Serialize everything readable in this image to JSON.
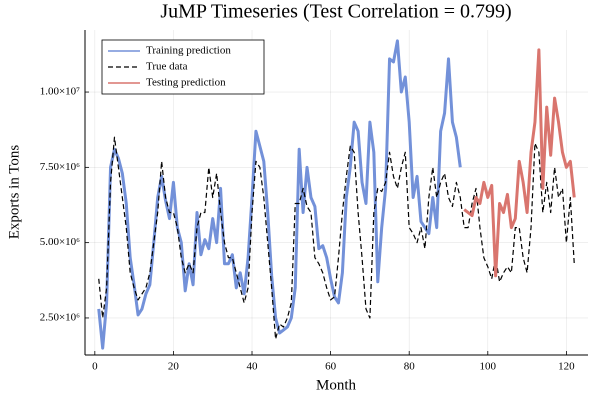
{
  "chart_data": {
    "type": "line",
    "title": "JuMP Timeseries (Test Correlation = 0.799)",
    "xlabel": "Month",
    "ylabel": "Exports in Tons",
    "xlim": [
      -2.5,
      125.5
    ],
    "xticks": [
      0,
      20,
      40,
      60,
      80,
      100,
      120
    ],
    "ylim": [
      1270000,
      12060000
    ],
    "yticks": [
      {
        "value": 2500000,
        "label": "2.50×10⁶"
      },
      {
        "value": 5000000,
        "label": "5.00×10⁶"
      },
      {
        "value": 7500000,
        "label": "7.50×10⁶"
      },
      {
        "value": 10000000,
        "label": "1.00×10⁷"
      }
    ],
    "grid": true,
    "legend": "top-left",
    "series": [
      {
        "name": "Training prediction",
        "color": "#7391d9",
        "line_style": "solid",
        "line_width": 3,
        "x": [
          1,
          2,
          3,
          4,
          5,
          6,
          7,
          8,
          9,
          10,
          11,
          12,
          13,
          14,
          15,
          16,
          17,
          18,
          19,
          20,
          21,
          22,
          23,
          24,
          25,
          26,
          27,
          28,
          29,
          30,
          31,
          32,
          33,
          34,
          35,
          36,
          37,
          38,
          39,
          40,
          41,
          42,
          43,
          44,
          45,
          46,
          47,
          48,
          49,
          50,
          51,
          52,
          53,
          54,
          55,
          56,
          57,
          58,
          59,
          60,
          61,
          62,
          63,
          64,
          65,
          66,
          67,
          68,
          69,
          70,
          71,
          72,
          73,
          74,
          75,
          76,
          77,
          78,
          79,
          80,
          81,
          82,
          83,
          84,
          85,
          86,
          87,
          88,
          89,
          90,
          91,
          92,
          93
        ],
        "values": [
          2800000,
          1500000,
          3000000,
          7500000,
          8100000,
          7800000,
          7300000,
          6300000,
          4500000,
          3600000,
          2600000,
          2800000,
          3300000,
          3600000,
          5000000,
          6500000,
          7200000,
          6400000,
          5800000,
          7000000,
          5500000,
          5000000,
          3400000,
          4300000,
          3600000,
          6000000,
          4600000,
          5100000,
          4800000,
          5800000,
          5000000,
          6800000,
          4300000,
          4300000,
          4600000,
          3500000,
          4000000,
          3300000,
          4500000,
          6500000,
          8700000,
          8200000,
          7700000,
          6000000,
          3900000,
          2500000,
          2000000,
          2100000,
          2200000,
          2500000,
          3500000,
          8100000,
          6000000,
          7500000,
          6500000,
          6200000,
          4800000,
          4900000,
          4500000,
          3800000,
          3200000,
          3000000,
          4000000,
          6500000,
          7500000,
          9000000,
          8700000,
          7000000,
          6300000,
          9000000,
          8000000,
          3700000,
          5500000,
          6800000,
          11100000,
          11000000,
          11700000,
          10000000,
          10500000,
          9000000,
          6500000,
          7200000,
          5700000,
          5500000,
          5300000,
          6500000,
          5500000,
          8700000,
          9300000,
          11100000,
          9000000,
          8500000,
          7500000
        ]
      },
      {
        "name": "True data",
        "color": "#000000",
        "line_style": "dashed",
        "line_width": 1.2,
        "x": [
          1,
          2,
          3,
          4,
          5,
          6,
          7,
          8,
          9,
          10,
          11,
          12,
          13,
          14,
          15,
          16,
          17,
          18,
          19,
          20,
          21,
          22,
          23,
          24,
          25,
          26,
          27,
          28,
          29,
          30,
          31,
          32,
          33,
          34,
          35,
          36,
          37,
          38,
          39,
          40,
          41,
          42,
          43,
          44,
          45,
          46,
          47,
          48,
          49,
          50,
          51,
          52,
          53,
          54,
          55,
          56,
          57,
          58,
          59,
          60,
          61,
          62,
          63,
          64,
          65,
          66,
          67,
          68,
          69,
          70,
          71,
          72,
          73,
          74,
          75,
          76,
          77,
          78,
          79,
          80,
          81,
          82,
          83,
          84,
          85,
          86,
          87,
          88,
          89,
          90,
          91,
          92,
          93,
          94,
          95,
          96,
          97,
          98,
          99,
          100,
          101,
          102,
          103,
          104,
          105,
          106,
          107,
          108,
          109,
          110,
          111,
          112,
          113,
          114,
          115,
          116,
          117,
          118,
          119,
          120,
          121,
          122
        ],
        "values": [
          3800000,
          2500000,
          3500000,
          7000000,
          8500000,
          7500000,
          6500000,
          5500000,
          4000000,
          3500000,
          3100000,
          3300000,
          3500000,
          4000000,
          5000000,
          6000000,
          7700000,
          6500000,
          6000000,
          6000000,
          5500000,
          4500000,
          4000000,
          4300000,
          4000000,
          5500000,
          6000000,
          6000000,
          7500000,
          6500000,
          7300000,
          6000000,
          5000000,
          4500000,
          4500000,
          4000000,
          3500000,
          3000000,
          3500000,
          6000000,
          7700000,
          7500000,
          6500000,
          5000000,
          3500000,
          1800000,
          2300000,
          2200000,
          2500000,
          3000000,
          6300000,
          6300000,
          6800000,
          6200000,
          6000000,
          4500000,
          4300000,
          4000000,
          3500000,
          3100000,
          3200000,
          4500000,
          6000000,
          7200000,
          8200000,
          8000000,
          6000000,
          4500000,
          2800000,
          2500000,
          6000000,
          6800000,
          6700000,
          7000000,
          8000000,
          7200000,
          6800000,
          7500000,
          8000000,
          5500000,
          5300000,
          5000000,
          5500000,
          4800000,
          6500000,
          7500000,
          6500000,
          7000000,
          7300000,
          6500000,
          6200000,
          7000000,
          6500000,
          5500000,
          5500000,
          6300000,
          6800000,
          5500000,
          4500000,
          4200000,
          3800000,
          4500000,
          3700000,
          4000000,
          4200000,
          4000000,
          5500000,
          5500000,
          4500000,
          4000000,
          5500000,
          8300000,
          8000000,
          6000000,
          7000000,
          6000000,
          7500000,
          6500000,
          6800000,
          5000000,
          6500000,
          4300000
        ]
      },
      {
        "name": "Testing prediction",
        "color": "#d9756e",
        "line_style": "solid",
        "line_width": 3,
        "x": [
          94,
          95,
          96,
          97,
          98,
          99,
          100,
          101,
          102,
          103,
          104,
          105,
          106,
          107,
          108,
          109,
          110,
          111,
          112,
          113,
          114,
          115,
          116,
          117,
          118,
          119,
          120,
          121,
          122
        ],
        "values": [
          6100000,
          6000000,
          5900000,
          6500000,
          6300000,
          7000000,
          6500000,
          6900000,
          3900000,
          6300000,
          6000000,
          6600000,
          5500000,
          5800000,
          7700000,
          7000000,
          6000000,
          8000000,
          9000000,
          11400000,
          6800000,
          9500000,
          7900000,
          9800000,
          9000000,
          8000000,
          7500000,
          7700000,
          6500000
        ]
      }
    ]
  }
}
